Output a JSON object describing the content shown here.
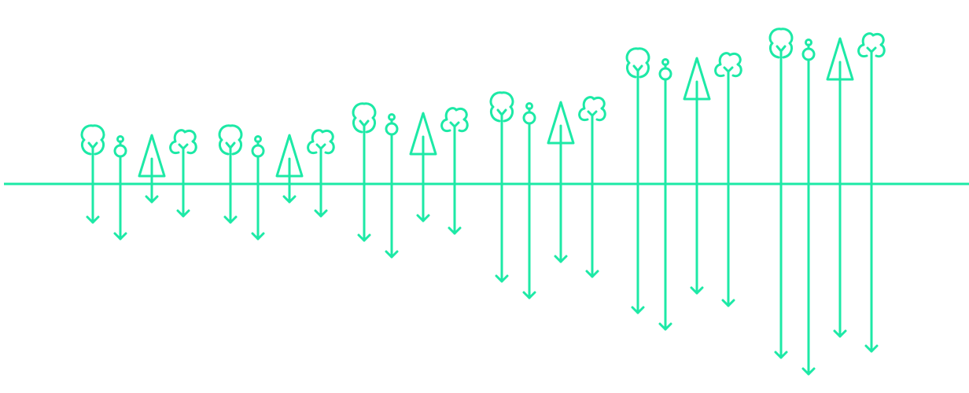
{
  "theme": {
    "stroke_color": "#1de9a6",
    "background": "#ffffff"
  },
  "icon_types": [
    "deciduous-tree-icon",
    "sapling-icon",
    "conifer-tree-icon",
    "bushy-tree-icon"
  ],
  "chart_data": {
    "type": "diagram",
    "groups": [
      {
        "trees": [
          {
            "type": "deciduous"
          },
          {
            "type": "sapling"
          },
          {
            "type": "conifer"
          },
          {
            "type": "bushy"
          }
        ]
      },
      {
        "trees": [
          {
            "type": "deciduous"
          },
          {
            "type": "sapling"
          },
          {
            "type": "conifer"
          },
          {
            "type": "bushy"
          }
        ]
      },
      {
        "trees": [
          {
            "type": "deciduous"
          },
          {
            "type": "sapling"
          },
          {
            "type": "conifer"
          },
          {
            "type": "bushy"
          }
        ]
      },
      {
        "trees": [
          {
            "type": "deciduous"
          },
          {
            "type": "sapling"
          },
          {
            "type": "conifer"
          },
          {
            "type": "bushy"
          }
        ]
      },
      {
        "trees": [
          {
            "type": "deciduous"
          },
          {
            "type": "sapling"
          },
          {
            "type": "conifer"
          },
          {
            "type": "bushy"
          }
        ]
      },
      {
        "trees": [
          {
            "type": "deciduous"
          },
          {
            "type": "sapling"
          },
          {
            "type": "conifer"
          },
          {
            "type": "bushy"
          }
        ]
      }
    ]
  }
}
